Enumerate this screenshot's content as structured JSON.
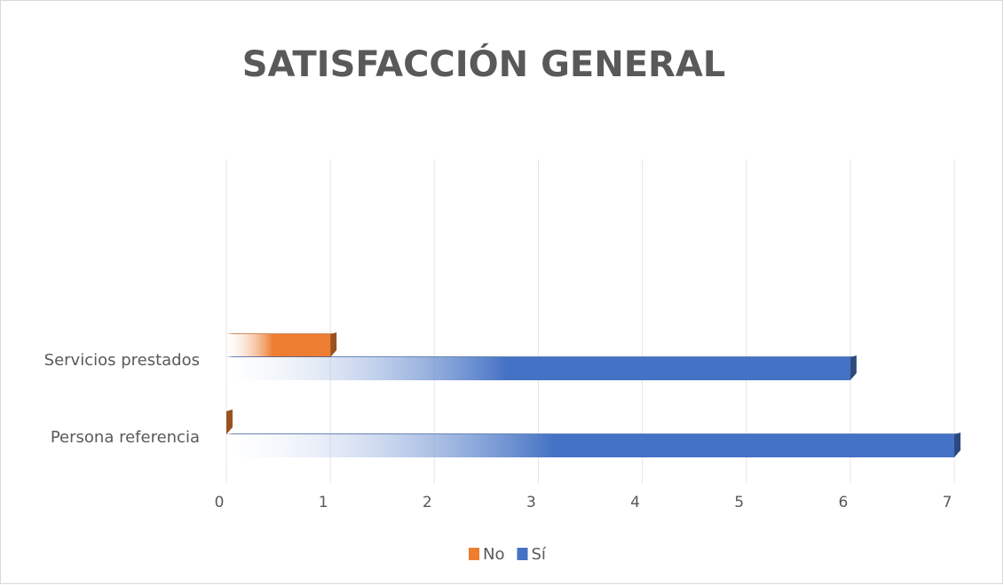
{
  "chart_data": {
    "type": "bar",
    "orientation": "horizontal",
    "title": "SATISFACCIÓN GENERAL",
    "categories": [
      "Servicios prestados",
      "Persona referencia"
    ],
    "series": [
      {
        "name": "No",
        "color": "#ed7d31",
        "values": [
          1,
          0
        ]
      },
      {
        "name": "Sí",
        "color": "#4472c4",
        "values": [
          6,
          7
        ]
      }
    ],
    "xlim": [
      0,
      7
    ],
    "xticks": [
      0,
      1,
      2,
      3,
      4,
      5,
      6,
      7
    ],
    "grid": true,
    "legend": "bottom"
  }
}
